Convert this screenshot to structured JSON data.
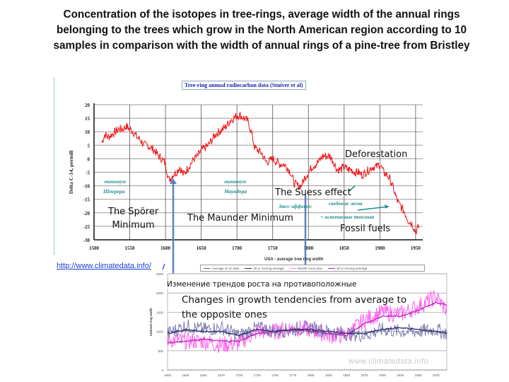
{
  "slide": {
    "title_lines": [
      "Concentration of the isotopes in tree-rings, average width of the annual rings",
      "belonging to the trees which grow in the North American region according to 10",
      "samples in comparison with the width of annual rings of a pine-tree from Bristley"
    ],
    "link": "http://www.climatedata.info/",
    "annotations": {
      "sporer_line1": "The Spörer",
      "sporer_line2": "Minimum",
      "maunder": "The Maunder Minimum",
      "suess": "The Suess effect",
      "deforestation": "Deforestation",
      "fossil": "Fossil fuels",
      "ru_change": "Изменение трендов роста на противоположные",
      "changes_line1": "Changes in growth tendencies from average to",
      "changes_line2": "the opposite ones"
    },
    "ru_labels": {
      "min1_a": "минимум",
      "min1_b": "Шперера",
      "min2_a": "минимум",
      "min2_b": "Маундера",
      "suess_ru": "Зюсс-эффект:",
      "forest_ru": "сведение лесов",
      "fossil_ru": "+ ископаемые топлива"
    },
    "colors": {
      "c14_line": "#ee1111",
      "arrow": "#5b83c4",
      "avg_line": "#6a6aa0",
      "avg_smooth": "#2a2a70",
      "bristle": "#ff44ee",
      "bristle_smooth": "#b02ab0"
    }
  },
  "chart_data": [
    {
      "type": "line",
      "title": "Tree-ring annual radiocarbon data (Stuiver et al)",
      "xlabel": "",
      "ylabel": "Delta C-14, permill",
      "xlim": [
        1500,
        1960
      ],
      "ylim": [
        -30,
        20
      ],
      "xticks": [
        "1500",
        "1550",
        "1600",
        "1650",
        "1700",
        "1750",
        "1800",
        "1850",
        "1900",
        "1950"
      ],
      "yticks": [
        "20",
        "15",
        "10",
        "5",
        "0",
        "-5",
        "-10",
        "-15",
        "-20",
        "-25",
        "-30"
      ],
      "grid": true,
      "series": [
        {
          "name": "Delta C-14",
          "x": [
            1511,
            1515,
            1520,
            1525,
            1530,
            1535,
            1540,
            1545,
            1550,
            1555,
            1560,
            1565,
            1570,
            1575,
            1580,
            1585,
            1590,
            1595,
            1600,
            1605,
            1610,
            1615,
            1620,
            1625,
            1630,
            1635,
            1640,
            1645,
            1650,
            1655,
            1660,
            1665,
            1670,
            1675,
            1680,
            1685,
            1690,
            1695,
            1700,
            1705,
            1710,
            1715,
            1720,
            1725,
            1730,
            1735,
            1740,
            1745,
            1750,
            1755,
            1760,
            1765,
            1770,
            1775,
            1780,
            1785,
            1790,
            1795,
            1800,
            1805,
            1810,
            1815,
            1820,
            1825,
            1830,
            1835,
            1840,
            1845,
            1850,
            1855,
            1860,
            1865,
            1870,
            1875,
            1880,
            1885,
            1890,
            1895,
            1900,
            1905,
            1910,
            1915,
            1920,
            1925,
            1930,
            1935,
            1940,
            1945,
            1950,
            1955
          ],
          "y": [
            6,
            9,
            8,
            9,
            10,
            11,
            11,
            12,
            11,
            10,
            8,
            7,
            5,
            5,
            4,
            3,
            1,
            0,
            -2,
            -8,
            -6,
            -5,
            -3,
            -6,
            -4,
            -2,
            0,
            1,
            3,
            4,
            5,
            7,
            9,
            10,
            11,
            12,
            14,
            15,
            16,
            16,
            15,
            14,
            10,
            4,
            3,
            2,
            -1,
            -1,
            0,
            -1,
            -2,
            -2,
            -3,
            -5,
            -9,
            -10,
            -10,
            -7,
            -5,
            -3,
            -2,
            -1,
            1,
            1,
            1,
            -1,
            -4,
            -4,
            -3,
            -4,
            -4,
            -5,
            -5,
            -6,
            -5,
            -4,
            -3,
            -3,
            -2,
            -5,
            -6,
            -8,
            -12,
            -16,
            -18,
            -20,
            -23,
            -24,
            -27,
            -25
          ]
        }
      ]
    },
    {
      "type": "line",
      "title": "USA - average tree ring width",
      "xlabel": "",
      "ylabel": "Indexed ring width",
      "xlim": [
        1600,
        1990
      ],
      "ylim": [
        0,
        2500
      ],
      "xticks": [
        "1600",
        "1625",
        "1650",
        "1675",
        "1700",
        "1725",
        "1750",
        "1775",
        "1800",
        "1825",
        "1850",
        "1875",
        "1900",
        "1925",
        "1950",
        "1975"
      ],
      "yticks": [
        "0",
        "500",
        "1000",
        "1500",
        "2000",
        "2500"
      ],
      "grid": true,
      "legend": [
        "Average of 10 sites",
        "20 yr moving average",
        "Bristle Cone pine",
        "20 yr moving average"
      ],
      "legend_position": "top",
      "series": [
        {
          "name": "Average of 10 sites",
          "x": [
            1600,
            1625,
            1650,
            1675,
            1700,
            1725,
            1750,
            1775,
            1800,
            1825,
            1850,
            1875,
            1900,
            1925,
            1950,
            1975,
            1990
          ],
          "y": [
            950,
            1150,
            1050,
            1100,
            900,
            1100,
            1000,
            1050,
            1100,
            1000,
            950,
            900,
            1050,
            1000,
            1000,
            1050,
            950
          ]
        },
        {
          "name": "20 yr moving average (avg)",
          "x": [
            1600,
            1625,
            1650,
            1675,
            1700,
            1725,
            1750,
            1775,
            1800,
            1825,
            1850,
            1875,
            1900,
            1925,
            1950,
            1975,
            1990
          ],
          "y": [
            950,
            1050,
            1000,
            1000,
            900,
            1050,
            1000,
            1050,
            1050,
            1000,
            950,
            950,
            1050,
            1100,
            1050,
            1000,
            950
          ]
        },
        {
          "name": "Bristle Cone pine",
          "x": [
            1600,
            1625,
            1650,
            1675,
            1700,
            1725,
            1750,
            1775,
            1800,
            1825,
            1850,
            1875,
            1900,
            1925,
            1950,
            1975,
            1990
          ],
          "y": [
            800,
            750,
            750,
            650,
            700,
            1000,
            1000,
            1100,
            1050,
            900,
            900,
            1300,
            1500,
            1450,
            1650,
            1900,
            1550
          ]
        },
        {
          "name": "20 yr moving average (pine)",
          "x": [
            1600,
            1625,
            1650,
            1675,
            1700,
            1725,
            1750,
            1775,
            1800,
            1825,
            1850,
            1875,
            1900,
            1925,
            1950,
            1975,
            1990
          ],
          "y": [
            700,
            750,
            800,
            750,
            750,
            950,
            1000,
            1050,
            1000,
            950,
            900,
            1200,
            1400,
            1400,
            1550,
            1750,
            1700
          ]
        }
      ],
      "watermark": "www.climatedata.info"
    }
  ]
}
